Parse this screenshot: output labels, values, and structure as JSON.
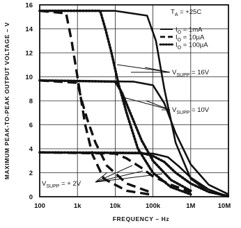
{
  "chart_data": {
    "type": "line",
    "title": "",
    "xlabel": "FREQUENCY – Hz",
    "ylabel": "MAXIMUM PEAK-TO-PEAK OUTPUT VOLTAGE – V",
    "x_scale": "log",
    "xlim": [
      100,
      10000000
    ],
    "ylim": [
      0,
      16
    ],
    "x_ticks": [
      100,
      1000,
      10000,
      100000,
      1000000,
      10000000
    ],
    "x_tick_labels": [
      "100",
      "1k",
      "10k",
      "100k",
      "1M",
      "10M"
    ],
    "y_ticks": [
      0,
      2,
      4,
      6,
      8,
      10,
      12,
      14,
      16
    ],
    "y_tick_labels": [
      "0",
      "2",
      "4",
      "6",
      "8",
      "10",
      "12",
      "14",
      "16"
    ],
    "grid": true,
    "legend_placement": "top-right",
    "legend": [
      {
        "label_main": "I",
        "label_sub": "O",
        "label_rest": " = 1mA",
        "style": "solid"
      },
      {
        "label_main": "I",
        "label_sub": "O",
        "label_rest": " = 10µA",
        "style": "dashed"
      },
      {
        "label_main": "I",
        "label_sub": "O",
        "label_rest": " = 100µA",
        "style": "dotted"
      }
    ],
    "annotations": {
      "ta": {
        "main": "T",
        "sub": "A",
        "rest": " = +25C"
      },
      "v16": {
        "main": "V",
        "sub": "SUPP",
        "rest": " = 16V"
      },
      "v10": {
        "main": "V",
        "sub": "SUPP",
        "rest": " = 10V"
      },
      "v2": {
        "main": "V",
        "sub": "SUPP",
        "rest": " = + 2V"
      }
    },
    "series": [
      {
        "group": "VSUPP = 16V",
        "style": "solid",
        "points": [
          [
            100,
            15.5
          ],
          [
            10000,
            15.5
          ],
          [
            70000,
            15.1
          ],
          [
            120000,
            13
          ],
          [
            200000,
            9
          ],
          [
            400000,
            4.5
          ],
          [
            1000000,
            1.5
          ],
          [
            3000000,
            0.4
          ],
          [
            10000000,
            0
          ]
        ]
      },
      {
        "group": "VSUPP = 16V",
        "style": "dashed",
        "points": [
          [
            100,
            15.5
          ],
          [
            500,
            15.3
          ],
          [
            700,
            13
          ],
          [
            1000,
            10
          ],
          [
            1600,
            6
          ],
          [
            2500,
            3.5
          ],
          [
            5000,
            1.5
          ],
          [
            20000,
            0.5
          ],
          [
            100000,
            0.15
          ]
        ]
      },
      {
        "group": "VSUPP = 16V",
        "style": "dotted",
        "points": [
          [
            100,
            15.5
          ],
          [
            4000,
            15.5
          ],
          [
            5500,
            14
          ],
          [
            8000,
            12
          ],
          [
            12000,
            9.5
          ],
          [
            20000,
            7
          ],
          [
            40000,
            4
          ],
          [
            100000,
            2
          ],
          [
            300000,
            0.8
          ],
          [
            1000000,
            0.2
          ]
        ]
      },
      {
        "group": "VSUPP = 10V",
        "style": "solid",
        "points": [
          [
            100,
            9.7
          ],
          [
            30000,
            9.6
          ],
          [
            100000,
            9.3
          ],
          [
            200000,
            7.8
          ],
          [
            400000,
            5.3
          ],
          [
            1000000,
            2.7
          ],
          [
            3000000,
            1
          ],
          [
            10000000,
            0.2
          ]
        ]
      },
      {
        "group": "VSUPP = 10V",
        "style": "dashed",
        "points": [
          [
            100,
            9.7
          ],
          [
            1000,
            9.5
          ],
          [
            1300,
            8
          ],
          [
            1800,
            6.5
          ],
          [
            3000,
            4.5
          ],
          [
            6000,
            2.6
          ],
          [
            20000,
            1.1
          ],
          [
            100000,
            0.3
          ]
        ]
      },
      {
        "group": "VSUPP = 10V",
        "style": "dotted",
        "points": [
          [
            100,
            9.7
          ],
          [
            10000,
            9.6
          ],
          [
            15000,
            8.7
          ],
          [
            25000,
            7
          ],
          [
            50000,
            4.7
          ],
          [
            100000,
            3
          ],
          [
            300000,
            1.4
          ],
          [
            1000000,
            0.5
          ]
        ]
      },
      {
        "group": "VSUPP = +2V",
        "style": "solid",
        "points": [
          [
            100,
            3.7
          ],
          [
            100000,
            3.6
          ],
          [
            250000,
            3.3
          ],
          [
            500000,
            2.5
          ],
          [
            1000000,
            1.6
          ],
          [
            3000000,
            0.6
          ],
          [
            10000000,
            0
          ]
        ]
      },
      {
        "group": "VSUPP = +2V",
        "style": "dashed",
        "points": [
          [
            100,
            3.7
          ],
          [
            10000,
            3.6
          ],
          [
            20000,
            3.2
          ],
          [
            50000,
            2.4
          ],
          [
            100000,
            1.7
          ],
          [
            300000,
            1
          ],
          [
            1000000,
            0.4
          ]
        ]
      },
      {
        "group": "VSUPP = +2V",
        "style": "dotted",
        "points": [
          [
            100,
            3.7
          ],
          [
            50000,
            3.65
          ],
          [
            100000,
            3.4
          ],
          [
            200000,
            2.9
          ],
          [
            400000,
            2
          ],
          [
            1000000,
            1.1
          ],
          [
            3000000,
            0.4
          ],
          [
            10000000,
            0.05
          ]
        ]
      }
    ]
  }
}
